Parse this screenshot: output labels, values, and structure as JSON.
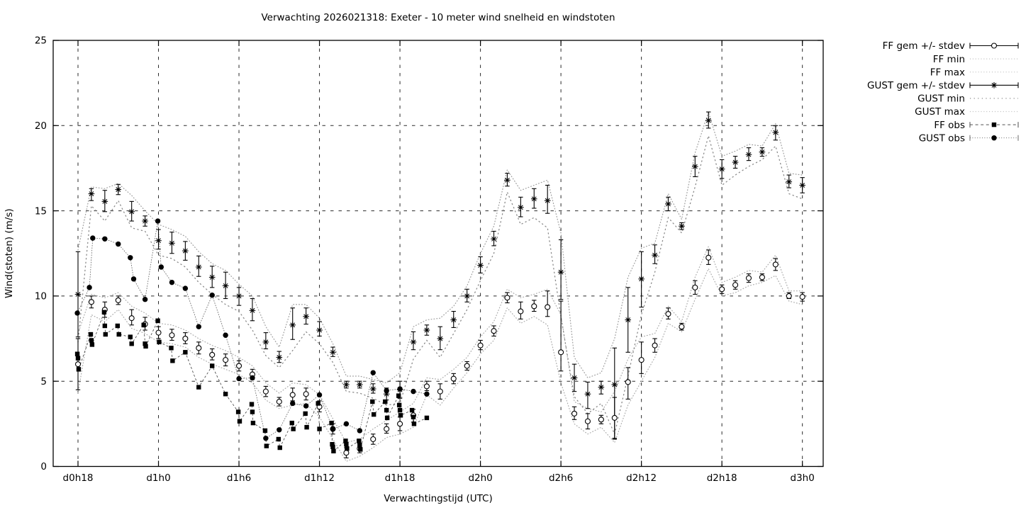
{
  "title": "Verwachting 2026021318: Exeter - 10 meter wind snelheid en windstoten",
  "colors": {
    "foreground": "#000000",
    "grid": "#2a2a2a",
    "envelope_light": "#ababab",
    "envelope_mid": "#9c9c9c",
    "envelope_dark": "#8a8a8a",
    "obs_line_dark": "#3a3a3a",
    "obs_line_mid": "#5a5a5a",
    "background": "#ffffff"
  },
  "chart_data": {
    "type": "line",
    "title": "Verwachting 2026021318: Exeter - 10 meter wind snelheid en windstoten",
    "xlabel": "Verwachtingstijd (UTC)",
    "ylabel": "Wind(stoten) (m/s)",
    "xlim": [
      16.15,
      73.55
    ],
    "ylim": [
      0,
      25
    ],
    "grid": true,
    "legend_position": "outside-right",
    "y_ticks": [
      0,
      5,
      10,
      15,
      20,
      25
    ],
    "x_major_ticks": [
      {
        "t": 18,
        "label": "d0h18"
      },
      {
        "t": 24,
        "label": "d1h0"
      },
      {
        "t": 30,
        "label": "d1h6"
      },
      {
        "t": 36,
        "label": "d1h12"
      },
      {
        "t": 42,
        "label": "d1h18"
      },
      {
        "t": 48,
        "label": "d2h0"
      },
      {
        "t": 54,
        "label": "d2h6"
      },
      {
        "t": 60,
        "label": "d2h12"
      },
      {
        "t": 66,
        "label": "d2h18"
      },
      {
        "t": 72,
        "label": "d3h0"
      }
    ],
    "forecast_t_start": 18,
    "forecast_t_step": 1,
    "legend": [
      {
        "label": "FF gem +/- stdev",
        "style": "errorbar",
        "marker": "circle-open"
      },
      {
        "label": "FF min",
        "style": "dotted-light",
        "marker": "none"
      },
      {
        "label": "FF max",
        "style": "dotted-light",
        "marker": "none"
      },
      {
        "label": "GUST gem +/- stdev",
        "style": "errorbar",
        "marker": "asterisk"
      },
      {
        "label": "GUST min",
        "style": "dotted-sparse",
        "marker": "none"
      },
      {
        "label": "GUST max",
        "style": "dotted-light",
        "marker": "none"
      },
      {
        "label": "FF obs",
        "style": "dashed",
        "marker": "square-filled"
      },
      {
        "label": "GUST obs",
        "style": "dotted-dense",
        "marker": "circle-filled"
      }
    ],
    "series": {
      "ff_gem": {
        "label": "FF gem +/- stdev",
        "mean": [
          6.0,
          9.65,
          9.2,
          9.75,
          8.7,
          8.35,
          7.85,
          7.7,
          7.5,
          6.95,
          6.55,
          6.25,
          5.9,
          5.4,
          4.4,
          3.8,
          4.2,
          4.25,
          3.5,
          2.2,
          0.8,
          1.05,
          1.6,
          2.2,
          2.5,
          3.0,
          4.7,
          4.4,
          5.15,
          5.9,
          7.1,
          7.95,
          9.9,
          9.1,
          9.4,
          9.35,
          6.7,
          3.1,
          2.65,
          2.75,
          2.85,
          4.95,
          6.25,
          7.1,
          8.95,
          8.2,
          10.5,
          12.25,
          10.4,
          10.65,
          11.05,
          11.1,
          11.85,
          10.0,
          9.95
        ],
        "lo": [
          4.5,
          9.3,
          8.75,
          9.5,
          8.3,
          8.0,
          7.5,
          7.4,
          7.2,
          6.6,
          6.25,
          5.9,
          5.6,
          5.1,
          4.1,
          3.55,
          3.85,
          3.9,
          3.2,
          1.9,
          0.5,
          0.8,
          1.3,
          1.95,
          2.1,
          2.6,
          4.45,
          3.95,
          4.85,
          5.65,
          6.85,
          7.65,
          9.6,
          8.65,
          9.1,
          8.8,
          5.6,
          2.75,
          2.2,
          2.5,
          1.65,
          3.95,
          5.45,
          6.7,
          8.65,
          8.0,
          10.1,
          11.85,
          10.15,
          10.4,
          10.8,
          10.9,
          11.5,
          9.85,
          9.7
        ],
        "hi": [
          7.5,
          10.0,
          9.65,
          10.0,
          9.2,
          8.75,
          8.2,
          8.05,
          7.85,
          7.3,
          6.9,
          6.6,
          6.2,
          5.7,
          4.7,
          4.05,
          4.6,
          4.6,
          3.85,
          2.5,
          1.1,
          1.35,
          1.9,
          2.5,
          2.9,
          3.35,
          5.0,
          4.85,
          5.45,
          6.15,
          7.4,
          8.25,
          10.2,
          9.65,
          9.75,
          10.3,
          9.7,
          3.5,
          3.1,
          3.0,
          4.05,
          5.8,
          7.3,
          7.5,
          9.3,
          8.4,
          10.9,
          12.7,
          10.65,
          10.9,
          11.3,
          11.3,
          12.2,
          10.2,
          10.2
        ]
      },
      "ff_min": {
        "label": "FF min",
        "values": [
          4.3,
          8.9,
          8.5,
          9.2,
          8.1,
          7.8,
          7.3,
          7.2,
          7.0,
          6.4,
          6.0,
          5.7,
          5.4,
          4.9,
          3.9,
          3.4,
          3.6,
          3.7,
          2.9,
          1.6,
          0.3,
          0.6,
          1.1,
          1.7,
          1.9,
          2.3,
          4.2,
          3.6,
          4.6,
          5.5,
          6.6,
          7.4,
          9.3,
          8.4,
          8.8,
          8.3,
          4.9,
          2.5,
          1.9,
          2.3,
          1.4,
          3.6,
          5.0,
          6.4,
          8.4,
          7.9,
          9.8,
          11.6,
          10.0,
          10.2,
          10.6,
          10.8,
          11.2,
          9.7,
          9.5
        ]
      },
      "ff_max": {
        "label": "FF max",
        "values": [
          7.8,
          10.1,
          9.9,
          10.2,
          9.4,
          9.0,
          8.4,
          8.3,
          8.0,
          7.5,
          7.1,
          6.8,
          6.4,
          5.9,
          4.9,
          4.3,
          4.9,
          4.8,
          4.2,
          2.8,
          1.4,
          1.6,
          2.2,
          2.7,
          3.2,
          3.7,
          5.2,
          5.1,
          5.7,
          6.4,
          7.6,
          8.5,
          10.4,
          9.9,
          10.1,
          10.4,
          8.9,
          3.8,
          3.4,
          3.2,
          4.4,
          6.3,
          7.6,
          7.8,
          9.4,
          8.5,
          11.1,
          12.9,
          10.8,
          11.1,
          11.5,
          11.4,
          12.4,
          10.3,
          10.3
        ]
      },
      "gust_gem": {
        "label": "GUST gem +/- stdev",
        "mean": [
          10.1,
          16.0,
          15.55,
          16.25,
          14.95,
          14.4,
          13.25,
          13.1,
          12.65,
          11.7,
          11.1,
          10.6,
          10.0,
          9.15,
          7.3,
          6.4,
          8.3,
          8.8,
          8.0,
          6.7,
          4.8,
          4.8,
          4.55,
          4.25,
          4.5,
          7.3,
          8.0,
          7.5,
          8.6,
          10.0,
          11.8,
          13.35,
          16.8,
          15.2,
          15.7,
          15.6,
          11.4,
          5.2,
          4.25,
          4.65,
          4.8,
          8.6,
          11.0,
          12.4,
          15.4,
          14.1,
          17.6,
          20.3,
          17.45,
          17.85,
          18.3,
          18.45,
          19.6,
          16.7,
          16.5
        ],
        "lo": [
          7.6,
          15.6,
          14.95,
          15.95,
          14.4,
          14.1,
          12.75,
          12.5,
          12.1,
          11.15,
          10.5,
          9.85,
          9.45,
          8.55,
          6.9,
          6.1,
          7.45,
          8.35,
          7.65,
          6.45,
          4.6,
          4.6,
          4.3,
          3.9,
          4.0,
          6.85,
          7.7,
          6.85,
          8.15,
          9.65,
          11.35,
          12.95,
          16.45,
          14.65,
          15.15,
          14.85,
          9.8,
          4.4,
          3.4,
          4.25,
          1.6,
          6.7,
          9.35,
          11.9,
          15.0,
          13.9,
          17.0,
          19.85,
          16.9,
          17.5,
          17.95,
          18.2,
          19.15,
          16.35,
          16.05
        ],
        "hi": [
          12.6,
          16.3,
          16.2,
          16.55,
          15.55,
          14.7,
          13.9,
          13.75,
          13.2,
          12.35,
          11.75,
          11.4,
          10.5,
          9.85,
          7.85,
          6.75,
          9.3,
          9.3,
          8.5,
          7.0,
          5.0,
          5.0,
          4.85,
          4.6,
          5.0,
          7.9,
          8.3,
          8.2,
          9.1,
          10.4,
          12.3,
          13.8,
          17.2,
          15.8,
          16.3,
          16.5,
          13.3,
          6.0,
          4.95,
          5.0,
          6.95,
          10.5,
          12.6,
          13.0,
          15.8,
          14.3,
          18.2,
          20.8,
          18.0,
          18.2,
          18.7,
          18.7,
          20.0,
          17.1,
          16.95
        ]
      },
      "gust_min": {
        "label": "GUST min",
        "values": [
          7.3,
          15.3,
          14.4,
          15.6,
          14.0,
          13.8,
          12.4,
          12.2,
          11.7,
          10.8,
          10.1,
          9.5,
          9.1,
          8.0,
          6.5,
          5.8,
          6.8,
          7.9,
          7.2,
          6.1,
          4.4,
          4.3,
          4.0,
          3.6,
          3.7,
          6.3,
          7.4,
          6.4,
          7.8,
          9.2,
          10.9,
          12.5,
          16.1,
          14.2,
          14.6,
          14.0,
          8.8,
          4.1,
          3.1,
          3.7,
          1.9,
          5.3,
          8.9,
          11.4,
          14.6,
          13.7,
          16.4,
          19.4,
          16.5,
          17.1,
          17.6,
          18.0,
          18.8,
          16.0,
          15.7
        ]
      },
      "gust_max": {
        "label": "GUST max",
        "values": [
          12.7,
          16.4,
          16.3,
          16.6,
          15.9,
          15.0,
          14.2,
          13.9,
          13.5,
          12.6,
          11.9,
          11.5,
          10.7,
          10.0,
          8.2,
          7.0,
          9.5,
          9.5,
          8.7,
          7.2,
          5.3,
          5.3,
          5.1,
          4.9,
          5.5,
          8.2,
          8.6,
          8.7,
          9.4,
          10.6,
          12.5,
          14.1,
          17.4,
          16.2,
          16.5,
          16.8,
          13.7,
          6.4,
          5.2,
          5.5,
          7.5,
          11.1,
          12.8,
          13.1,
          16.0,
          14.5,
          18.4,
          20.8,
          18.2,
          18.5,
          18.9,
          18.8,
          20.1,
          17.2,
          17.1
        ]
      },
      "ff_obs": {
        "label": "FF obs",
        "points": [
          [
            17.95,
            6.6
          ],
          [
            18.0,
            6.35
          ],
          [
            18.05,
            5.7
          ],
          [
            18.95,
            7.75
          ],
          [
            19.0,
            7.4
          ],
          [
            19.05,
            7.15
          ],
          [
            19.95,
            9.05
          ],
          [
            20.0,
            8.25
          ],
          [
            20.05,
            7.75
          ],
          [
            20.95,
            8.25
          ],
          [
            21.05,
            7.75
          ],
          [
            21.9,
            7.6
          ],
          [
            22.0,
            7.2
          ],
          [
            22.9,
            8.3
          ],
          [
            23.0,
            7.2
          ],
          [
            23.05,
            7.05
          ],
          [
            23.95,
            8.55
          ],
          [
            24.05,
            7.3
          ],
          [
            24.95,
            6.95
          ],
          [
            25.05,
            6.2
          ],
          [
            26.0,
            6.7
          ],
          [
            27.0,
            4.65
          ],
          [
            28.0,
            5.9
          ],
          [
            29.0,
            4.25
          ],
          [
            29.95,
            3.2
          ],
          [
            30.05,
            2.65
          ],
          [
            30.95,
            3.65
          ],
          [
            31.0,
            3.2
          ],
          [
            31.05,
            2.55
          ],
          [
            31.95,
            2.1
          ],
          [
            32.05,
            1.2
          ],
          [
            32.95,
            1.6
          ],
          [
            33.05,
            1.1
          ],
          [
            33.95,
            2.55
          ],
          [
            34.05,
            2.2
          ],
          [
            34.95,
            3.1
          ],
          [
            35.05,
            2.3
          ],
          [
            35.9,
            3.7
          ],
          [
            36.0,
            2.2
          ],
          [
            36.9,
            2.55
          ],
          [
            36.95,
            1.3
          ],
          [
            37.0,
            1.15
          ],
          [
            37.05,
            0.9
          ],
          [
            37.95,
            1.5
          ],
          [
            38.0,
            1.3
          ],
          [
            38.05,
            1.05
          ],
          [
            38.95,
            1.5
          ],
          [
            39.0,
            1.25
          ],
          [
            39.05,
            1.0
          ],
          [
            39.95,
            3.8
          ],
          [
            40.05,
            3.05
          ],
          [
            40.9,
            3.8
          ],
          [
            41.0,
            3.3
          ],
          [
            41.05,
            2.85
          ],
          [
            41.9,
            4.15
          ],
          [
            41.95,
            3.6
          ],
          [
            42.0,
            3.3
          ],
          [
            42.05,
            3.0
          ],
          [
            42.9,
            3.3
          ],
          [
            43.0,
            2.9
          ],
          [
            43.05,
            2.5
          ],
          [
            44.0,
            2.85
          ]
        ]
      },
      "gust_obs": {
        "label": "GUST obs",
        "points": [
          [
            17.95,
            9.0
          ],
          [
            18.85,
            10.5
          ],
          [
            19.1,
            13.4
          ],
          [
            20.0,
            13.35
          ],
          [
            21.0,
            13.05
          ],
          [
            21.9,
            12.25
          ],
          [
            22.15,
            11.0
          ],
          [
            23.0,
            9.8
          ],
          [
            23.95,
            14.4
          ],
          [
            24.2,
            11.7
          ],
          [
            25.0,
            10.8
          ],
          [
            26.0,
            10.45
          ],
          [
            27.0,
            8.2
          ],
          [
            28.0,
            10.05
          ],
          [
            29.0,
            7.7
          ],
          [
            30.0,
            5.15
          ],
          [
            31.0,
            5.2
          ],
          [
            32.0,
            1.65
          ],
          [
            33.0,
            2.15
          ],
          [
            34.0,
            3.7
          ],
          [
            35.0,
            3.55
          ],
          [
            36.0,
            4.2
          ],
          [
            37.0,
            2.2
          ],
          [
            38.0,
            2.5
          ],
          [
            39.0,
            2.1
          ],
          [
            40.0,
            5.5
          ],
          [
            41.0,
            4.45
          ],
          [
            42.0,
            4.55
          ],
          [
            43.0,
            4.4
          ],
          [
            44.0,
            4.25
          ]
        ]
      }
    }
  }
}
